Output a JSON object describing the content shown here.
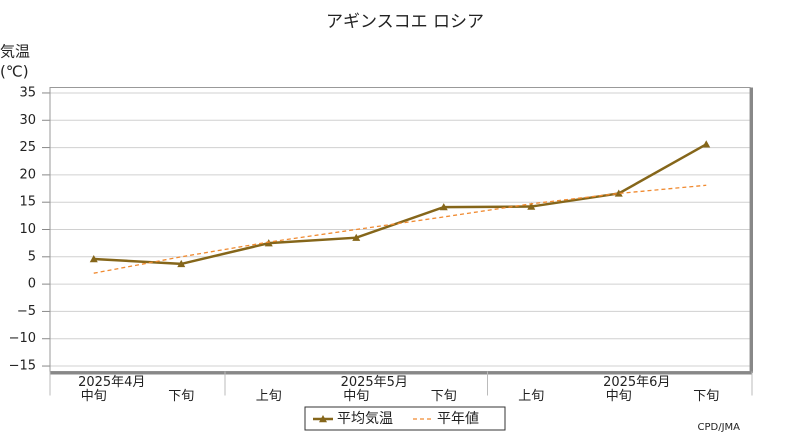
{
  "chart_data": {
    "type": "line",
    "title": "アギンスコエ ロシア",
    "y_label": [
      "気温",
      "(℃)"
    ],
    "categories": [
      "中旬",
      "下旬",
      "上旬",
      "中旬",
      "下旬",
      "上旬",
      "中旬",
      "下旬"
    ],
    "month_labels": [
      "2025年4月",
      null,
      null,
      "2025年5月",
      null,
      null,
      "2025年6月",
      null
    ],
    "series": [
      {
        "name": "平均気温",
        "color": "#85661a",
        "style": "solid",
        "marker": "triangle",
        "values": [
          4.6,
          3.7,
          7.5,
          8.5,
          14.1,
          14.2,
          16.6,
          25.6
        ]
      },
      {
        "name": "平年値",
        "color": "#f08a30",
        "style": "dashed",
        "values": [
          2.0,
          5.0,
          7.7,
          10.0,
          12.3,
          14.7,
          16.6,
          18.1
        ]
      }
    ],
    "ylim": [
      -16,
      36
    ],
    "yticks": [
      35,
      30,
      25,
      20,
      15,
      10,
      5,
      0,
      {
        "value": -5,
        "label": "−5"
      },
      {
        "value": -10,
        "label": "−10"
      },
      {
        "value": -15,
        "label": "−15"
      }
    ],
    "grid": true,
    "legend": "bottom",
    "credit": "CPD/JMA"
  }
}
